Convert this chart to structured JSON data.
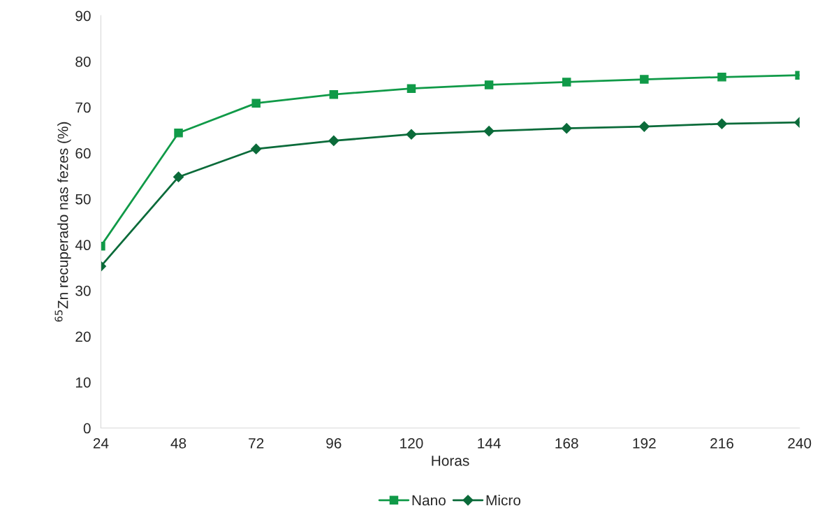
{
  "chart_data": {
    "type": "line",
    "xlabel": "Horas",
    "ylabel": "$^{65}$Zn recuperado nas fezes (%)",
    "x": [
      24,
      48,
      72,
      96,
      120,
      144,
      168,
      192,
      216,
      240
    ],
    "series": [
      {
        "name": "Nano",
        "color": "#109a48",
        "marker": "square",
        "values": [
          39.7,
          64.4,
          70.9,
          72.8,
          74.1,
          74.9,
          75.5,
          76.1,
          76.6,
          77.0
        ]
      },
      {
        "name": "Micro",
        "color": "#0b6b3a",
        "marker": "diamond",
        "values": [
          35.3,
          54.8,
          60.9,
          62.7,
          64.1,
          64.8,
          65.4,
          65.8,
          66.4,
          66.7
        ]
      }
    ],
    "xlim": [
      24,
      240
    ],
    "xticks": [
      24,
      48,
      72,
      96,
      120,
      144,
      168,
      192,
      216,
      240
    ],
    "ylim": [
      0,
      90
    ],
    "yticks": [
      0,
      10,
      20,
      30,
      40,
      50,
      60,
      70,
      80,
      90
    ],
    "grid": false,
    "legend": "bottom",
    "line_style": "solid"
  }
}
